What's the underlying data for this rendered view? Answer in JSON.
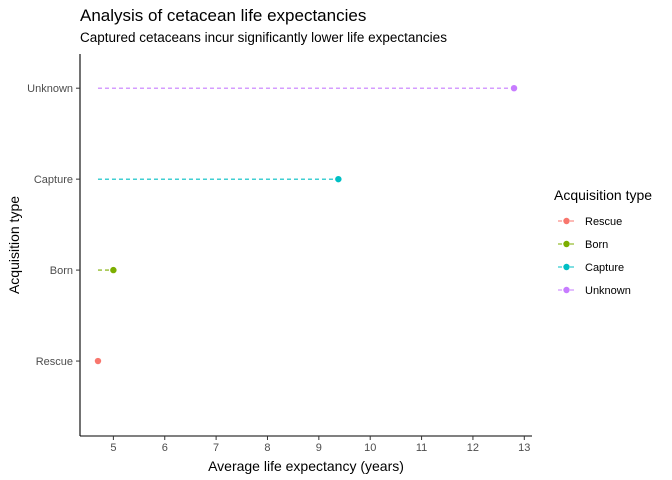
{
  "chart_data": {
    "type": "scatter",
    "title": "Analysis of cetacean life expectancies",
    "subtitle": "Captured cetaceans incur significantly lower life expectancies",
    "xlabel": "Average life expectancy (years)",
    "ylabel": "Acquisition type",
    "xlim": [
      4.35,
      13.15
    ],
    "x_ticks": [
      5,
      6,
      7,
      8,
      9,
      10,
      11,
      12,
      13
    ],
    "categories": [
      "Rescue",
      "Born",
      "Capture",
      "Unknown"
    ],
    "segment_start": 4.7,
    "series": [
      {
        "name": "Rescue",
        "category": "Rescue",
        "value": 4.7,
        "color": "#F8766D"
      },
      {
        "name": "Born",
        "category": "Born",
        "value": 5.0,
        "color": "#7CAE00"
      },
      {
        "name": "Capture",
        "category": "Capture",
        "value": 9.38,
        "color": "#00BFC4"
      },
      {
        "name": "Unknown",
        "category": "Unknown",
        "value": 12.8,
        "color": "#C77CFF"
      }
    ],
    "legend": {
      "title": "Acquisition type",
      "position": "right"
    },
    "grid": false
  }
}
